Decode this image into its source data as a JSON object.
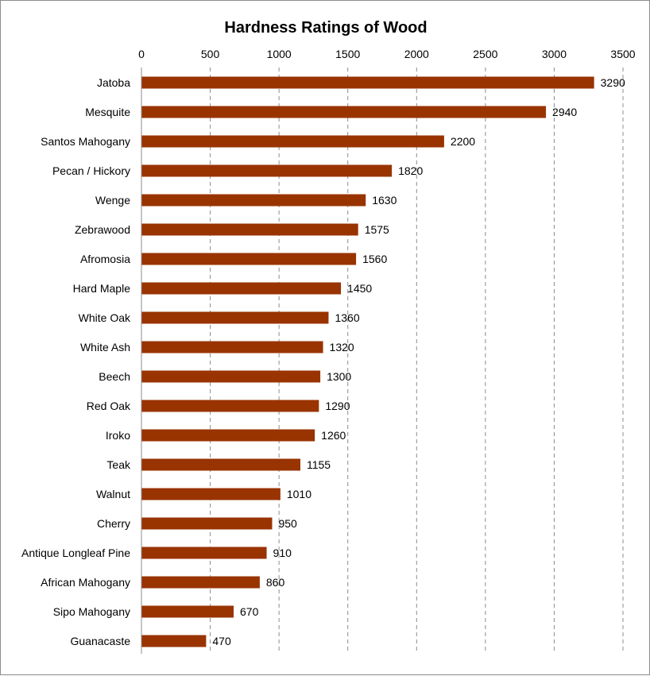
{
  "chart_data": {
    "type": "bar",
    "orientation": "horizontal",
    "title": "Hardness Ratings of Wood",
    "xlabel": "",
    "ylabel": "",
    "xlim": [
      0,
      3500
    ],
    "x_ticks": [
      "0",
      "500",
      "1000",
      "1500",
      "2000",
      "2500",
      "3000",
      "3500"
    ],
    "x_axis_position": "top",
    "grid": "vertical dashed",
    "legend": "none",
    "bar_color": "#993300",
    "categories": [
      "Jatoba",
      "Mesquite",
      "Santos Mahogany",
      "Pecan / Hickory",
      "Wenge",
      "Zebrawood",
      "Afromosia",
      "Hard Maple",
      "White Oak",
      "White Ash",
      "Beech",
      "Red Oak",
      "Iroko",
      "Teak",
      "Walnut",
      "Cherry",
      "Antique Longleaf Pine",
      "African Mahogany",
      "Sipo Mahogany",
      "Guanacaste"
    ],
    "values": [
      3290,
      2940,
      2200,
      1820,
      1630,
      1575,
      1560,
      1450,
      1360,
      1320,
      1300,
      1290,
      1260,
      1155,
      1010,
      950,
      910,
      860,
      670,
      470
    ],
    "data_labels": [
      "3290",
      "2940",
      "2200",
      "1820",
      "1630",
      "1575",
      "1560",
      "1450",
      "1360",
      "1320",
      "1300",
      "1290",
      "1260",
      "1155",
      "1010",
      "950",
      "910",
      "860",
      "670",
      "470"
    ]
  }
}
